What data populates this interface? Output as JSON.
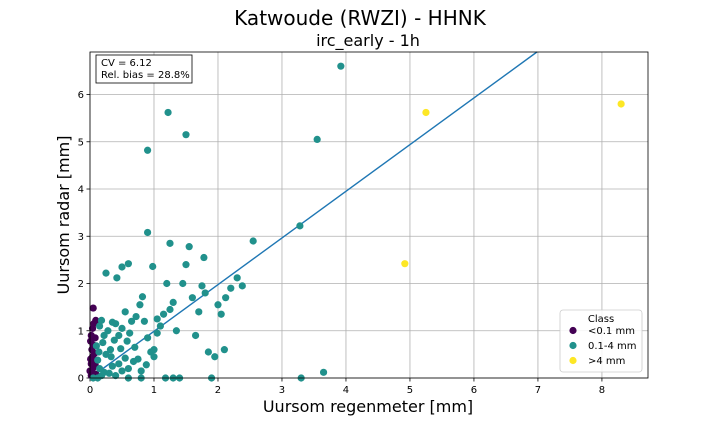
{
  "chart_data": {
    "type": "scatter",
    "title": "Katwoude (RWZI) - HHNK",
    "subtitle": "irc_early - 1h",
    "xlabel": "Uursom regenmeter [mm]",
    "ylabel": "Uursom radar [mm]",
    "xlim": [
      0,
      8.72
    ],
    "ylim": [
      0,
      6.9
    ],
    "xticks": [
      0,
      1,
      2,
      3,
      4,
      5,
      6,
      7,
      8
    ],
    "yticks": [
      0,
      1,
      2,
      3,
      4,
      5,
      6
    ],
    "grid": true,
    "stats_lines": [
      "CV = 6.12",
      "Rel. bias = 28.8%"
    ],
    "stats_position": "top-left",
    "regression_line": {
      "slope": 0.988,
      "intercept": 0,
      "color": "#1f77b4"
    },
    "legend": {
      "title": "Class",
      "position": "bottom-right"
    },
    "series": [
      {
        "name": "<0.1 mm",
        "color": "#440154",
        "points": [
          [
            0.02,
            0.05
          ],
          [
            0.03,
            0.12
          ],
          [
            0.05,
            0.22
          ],
          [
            0.02,
            0.3
          ],
          [
            0.06,
            0.35
          ],
          [
            0.04,
            0.45
          ],
          [
            0.07,
            0.52
          ],
          [
            0.03,
            0.6
          ],
          [
            0.05,
            0.7
          ],
          [
            0.08,
            0.85
          ],
          [
            0.02,
            0.9
          ],
          [
            0.04,
            1.05
          ],
          [
            0.06,
            1.15
          ],
          [
            0.09,
            1.22
          ],
          [
            0.05,
            1.48
          ],
          [
            0.0,
            0.15
          ],
          [
            0.01,
            0.4
          ],
          [
            0.08,
            0.28
          ],
          [
            0.09,
            0.08
          ],
          [
            0.01,
            0.78
          ]
        ]
      },
      {
        "name": "0.1-4 mm",
        "color": "#21918c",
        "points": [
          [
            0.12,
            0.0
          ],
          [
            0.18,
            0.05
          ],
          [
            0.22,
            0.12
          ],
          [
            0.15,
            0.2
          ],
          [
            0.3,
            0.1
          ],
          [
            0.35,
            0.25
          ],
          [
            0.4,
            0.05
          ],
          [
            0.45,
            0.3
          ],
          [
            0.5,
            0.15
          ],
          [
            0.55,
            0.42
          ],
          [
            0.6,
            0.2
          ],
          [
            0.25,
            0.5
          ],
          [
            0.32,
            0.6
          ],
          [
            0.2,
            0.75
          ],
          [
            0.38,
            0.8
          ],
          [
            0.45,
            0.9
          ],
          [
            0.28,
            1.0
          ],
          [
            0.15,
            1.1
          ],
          [
            0.4,
            1.15
          ],
          [
            0.5,
            1.05
          ],
          [
            0.62,
            0.95
          ],
          [
            0.7,
            0.65
          ],
          [
            0.75,
            0.4
          ],
          [
            0.8,
            0.15
          ],
          [
            0.65,
            1.2
          ],
          [
            0.72,
            1.3
          ],
          [
            0.78,
            1.55
          ],
          [
            0.82,
            1.72
          ],
          [
            0.85,
            1.2
          ],
          [
            0.9,
            0.85
          ],
          [
            0.95,
            0.55
          ],
          [
            1.0,
            0.45
          ],
          [
            1.05,
            0.95
          ],
          [
            1.1,
            1.1
          ],
          [
            1.15,
            1.35
          ],
          [
            1.2,
            2.0
          ],
          [
            1.25,
            1.45
          ],
          [
            1.3,
            1.6
          ],
          [
            1.35,
            1.0
          ],
          [
            1.4,
            0.0
          ],
          [
            1.45,
            2.0
          ],
          [
            1.5,
            2.4
          ],
          [
            1.55,
            2.78
          ],
          [
            1.6,
            1.7
          ],
          [
            1.7,
            1.4
          ],
          [
            1.75,
            1.95
          ],
          [
            1.8,
            1.8
          ],
          [
            1.85,
            0.55
          ],
          [
            1.9,
            0.0
          ],
          [
            1.95,
            0.45
          ],
          [
            2.0,
            1.55
          ],
          [
            2.05,
            1.35
          ],
          [
            2.1,
            0.6
          ],
          [
            2.12,
            1.7
          ],
          [
            2.2,
            1.9
          ],
          [
            2.3,
            2.12
          ],
          [
            2.38,
            1.95
          ],
          [
            2.55,
            2.9
          ],
          [
            3.28,
            3.22
          ],
          [
            3.3,
            0.0
          ],
          [
            3.65,
            0.12
          ],
          [
            3.55,
            5.05
          ],
          [
            3.92,
            6.6
          ],
          [
            1.22,
            5.62
          ],
          [
            1.5,
            5.15
          ],
          [
            0.9,
            4.82
          ],
          [
            0.9,
            3.08
          ],
          [
            1.25,
            2.85
          ],
          [
            1.78,
            2.55
          ],
          [
            0.6,
            2.42
          ],
          [
            0.98,
            2.36
          ],
          [
            0.5,
            2.35
          ],
          [
            0.42,
            2.12
          ],
          [
            0.25,
            2.22
          ],
          [
            0.55,
            1.4
          ],
          [
            0.18,
            1.22
          ],
          [
            1.05,
            1.25
          ],
          [
            1.3,
            0.0
          ],
          [
            1.18,
            0.0
          ],
          [
            0.05,
            0.0
          ],
          [
            0.12,
            0.38
          ],
          [
            0.33,
            0.45
          ],
          [
            0.48,
            0.62
          ],
          [
            0.58,
            0.78
          ],
          [
            0.68,
            0.35
          ],
          [
            0.88,
            0.28
          ],
          [
            0.22,
            0.9
          ],
          [
            0.35,
            1.18
          ],
          [
            0.1,
            0.68
          ],
          [
            0.14,
            0.55
          ],
          [
            1.65,
            0.9
          ],
          [
            1.0,
            0.6
          ],
          [
            0.8,
            0.0
          ],
          [
            0.6,
            0.0
          ]
        ]
      },
      {
        "name": ">4 mm",
        "color": "#fde725",
        "points": [
          [
            5.25,
            5.62
          ],
          [
            8.3,
            5.8
          ],
          [
            4.92,
            2.42
          ]
        ]
      }
    ]
  }
}
